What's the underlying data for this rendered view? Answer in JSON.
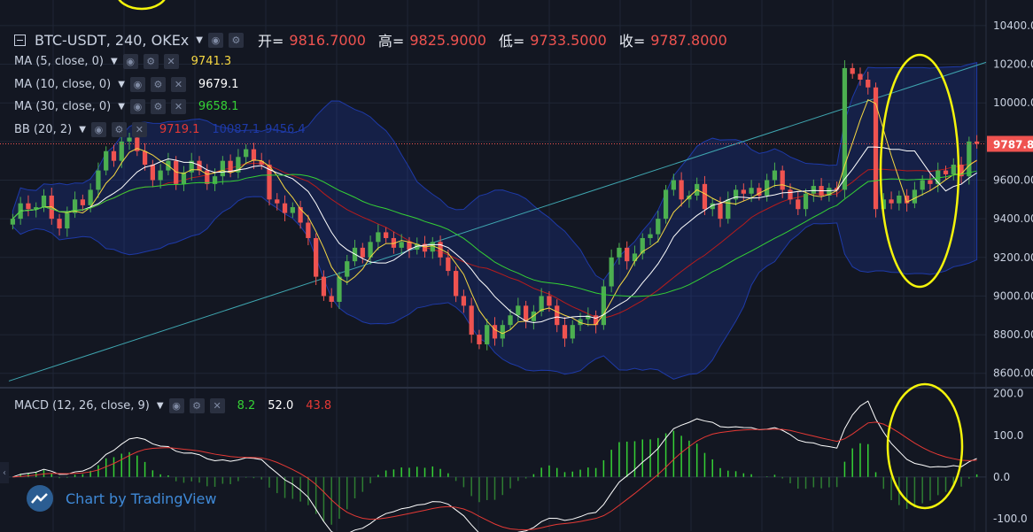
{
  "header": {
    "symbol": "BTC-USDT, 240, OKEx",
    "ohlc": [
      {
        "key": "开=",
        "value": "9816.7000"
      },
      {
        "key": "高=",
        "value": "9825.9000"
      },
      {
        "key": "低=",
        "value": "9733.5000"
      },
      {
        "key": "收=",
        "value": "9787.8000"
      }
    ]
  },
  "indicators": [
    {
      "label": "MA (5, close, 0)",
      "value": "9741.3",
      "color": "#f5d742"
    },
    {
      "label": "MA (10, close, 0)",
      "value": "9679.1",
      "color": "#ffffff"
    },
    {
      "label": "MA (30, close, 0)",
      "value": "9658.1",
      "color": "#35d135"
    },
    {
      "label": "BB (20, 2)",
      "value": "9719.1",
      "value2": "10087.1",
      "value3": "9456.4",
      "color": "#e53935"
    }
  ],
  "macd": {
    "label": "MACD (12, 26, close, 9)",
    "values": [
      "8.2",
      "52.0",
      "43.8"
    ],
    "colors": [
      "#35d135",
      "#ffffff",
      "#e53935"
    ]
  },
  "watermark": "Chart by TradingView",
  "price_tag": "9787.8",
  "colors": {
    "up": "#26a69a",
    "down": "#ef5350",
    "bg": "#131722",
    "highlight": "#f4f40b"
  },
  "chart_data": {
    "type": "candlestick",
    "interval": "240",
    "y_axis": {
      "ticks": [
        "10400.00",
        "10200.00",
        "10000.00",
        "9800.00",
        "9600.00",
        "9400.00",
        "9200.00",
        "9000.00",
        "8800.00",
        "8600.00"
      ],
      "ylim": [
        8530,
        10450
      ]
    },
    "macd_axis": {
      "ticks": [
        "200.0",
        "100.0",
        "0.0",
        "-100.0"
      ],
      "ylim": [
        -130,
        210
      ]
    },
    "close": [
      9400,
      9480,
      9450,
      9460,
      9520,
      9400,
      9350,
      9430,
      9500,
      9470,
      9550,
      9650,
      9750,
      9700,
      9800,
      9820,
      9750,
      9680,
      9600,
      9650,
      9700,
      9580,
      9640,
      9700,
      9650,
      9580,
      9620,
      9700,
      9640,
      9720,
      9760,
      9700,
      9680,
      9500,
      9480,
      9430,
      9460,
      9380,
      9300,
      9100,
      9000,
      8970,
      9100,
      9180,
      9250,
      9200,
      9280,
      9330,
      9300,
      9250,
      9280,
      9240,
      9270,
      9230,
      9280,
      9200,
      9130,
      9000,
      8950,
      8800,
      8750,
      8850,
      8780,
      8850,
      8900,
      8950,
      8870,
      8920,
      9000,
      8950,
      8850,
      8780,
      8850,
      8880,
      8900,
      8850,
      9050,
      9200,
      9250,
      9180,
      9220,
      9300,
      9320,
      9400,
      9550,
      9600,
      9500,
      9520,
      9580,
      9450,
      9480,
      9400,
      9500,
      9550,
      9530,
      9560,
      9520,
      9600,
      9650,
      9550,
      9500,
      9450,
      9530,
      9570,
      9520,
      9560,
      9550,
      10180,
      10150,
      10120,
      10080,
      9450,
      9500,
      9480,
      9520,
      9480,
      9550,
      9600,
      9580,
      9650,
      9630,
      9680,
      9620,
      9800,
      9787.8
    ],
    "annotations": [
      "ellipse highlight on last candles",
      "ellipse highlight on MACD crossover"
    ]
  }
}
